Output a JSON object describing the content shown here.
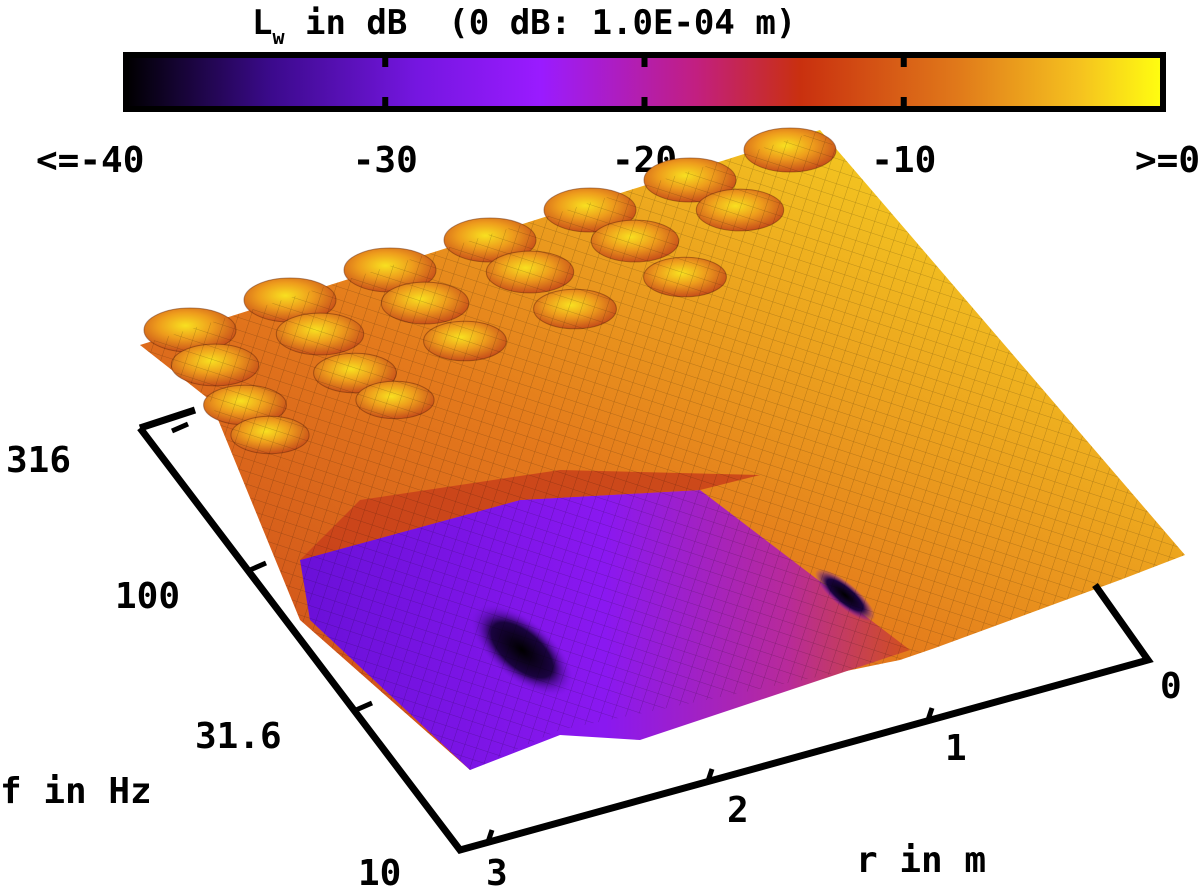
{
  "chart_data": {
    "type": "surface3d",
    "title": "L",
    "title_sub": "w",
    "title_rest": " in dB  (0 dB: 1.0E-04 m)",
    "xlabel": "r in m",
    "ylabel": "f in Hz",
    "x_ticks": [
      "0",
      "1",
      "2",
      "3"
    ],
    "y_ticks": [
      "10",
      "31.6",
      "100",
      "316"
    ],
    "xlim": [
      0,
      3
    ],
    "ylim": [
      10,
      316
    ],
    "y_scale": "log",
    "colorbar": {
      "range": [
        -40,
        0
      ],
      "ticks": [
        "<=-40",
        "-30",
        "-20",
        "-10",
        ">=0"
      ],
      "colormap": [
        "#000000",
        "#3b0a8c",
        "#8a1bff",
        "#c21fa0",
        "#c9300f",
        "#e06a14",
        "#f2b21c",
        "#ffff10"
      ]
    },
    "mesh": "on",
    "features": [
      {
        "region": "low-frequency, r 0-3 m",
        "level_db": -30
      },
      {
        "region": "near r 0 m, above ~60 Hz",
        "level_db": -3
      },
      {
        "region": "deep minima at r ~1 m and r ~2.5 m, f ~30-60 Hz",
        "level_db": -40
      },
      {
        "region": "ridges of peaks at high frequencies",
        "level_db": 0
      }
    ]
  }
}
